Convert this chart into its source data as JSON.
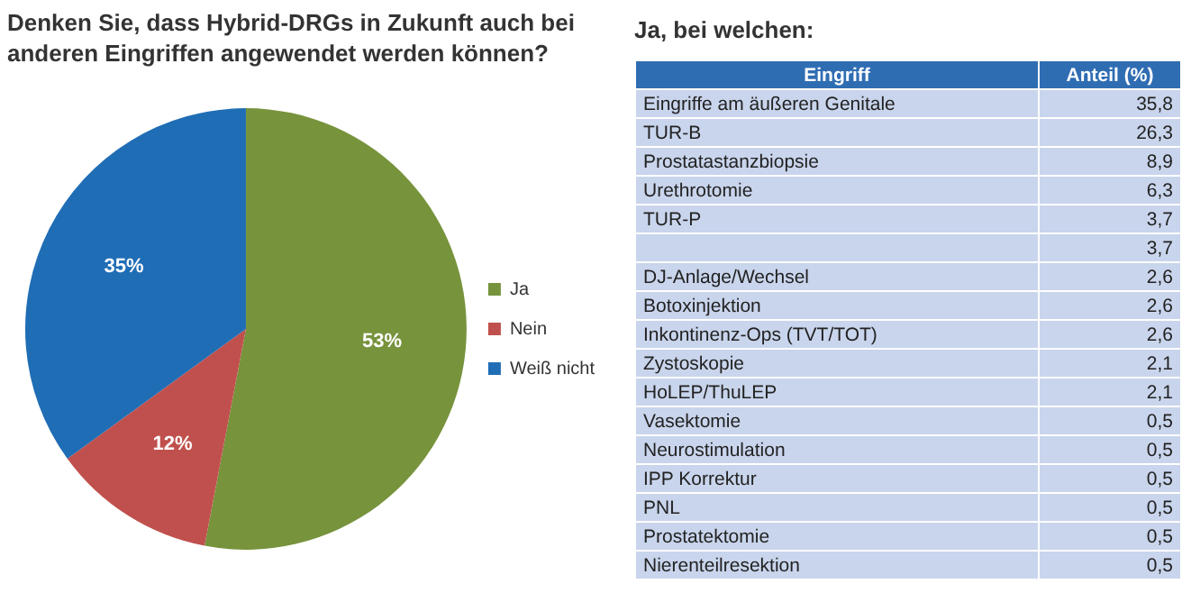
{
  "chart_data": [
    {
      "type": "pie",
      "title": "Denken Sie, dass Hybrid-DRGs in Zukunft auch bei anderen Eingriffen angewendet werden können?",
      "categories": [
        "Ja",
        "Nein",
        "Weiß nicht"
      ],
      "values": [
        53,
        12,
        35
      ],
      "colors": [
        "#77933c",
        "#c0504d",
        "#1f6db5"
      ],
      "value_labels": [
        "53%",
        "12%",
        "35%"
      ],
      "legend": "right"
    },
    {
      "type": "other",
      "title": "Ja, bei welchen:",
      "xlabel": "Eingriff",
      "ylabel": "Anteil (%)",
      "categories": [
        "Eingriffe am äußeren Genitale",
        "TUR-B",
        "Prostatastanzbiopsie",
        "Urethrotomie",
        "TUR-P",
        null,
        "DJ-Anlage/Wechsel",
        "Botoxinjektion",
        "Inkontinenz-Ops (TVT/TOT)",
        "Zystoskopie",
        "HoLEP/ThuLEP",
        "Vasektomie",
        "Neurostimulation",
        "IPP Korrektur",
        "PNL",
        "Prostatektomie",
        "Nierenteilresektion"
      ],
      "value_labels": [
        "35,8",
        "26,3",
        "8,9",
        "6,3",
        "3,7",
        "3,7",
        "2,6",
        "2,6",
        "2,6",
        "2,1",
        "2,1",
        "0,5",
        "0,5",
        "0,5",
        "0,5",
        "0,5",
        "0,5"
      ]
    }
  ]
}
